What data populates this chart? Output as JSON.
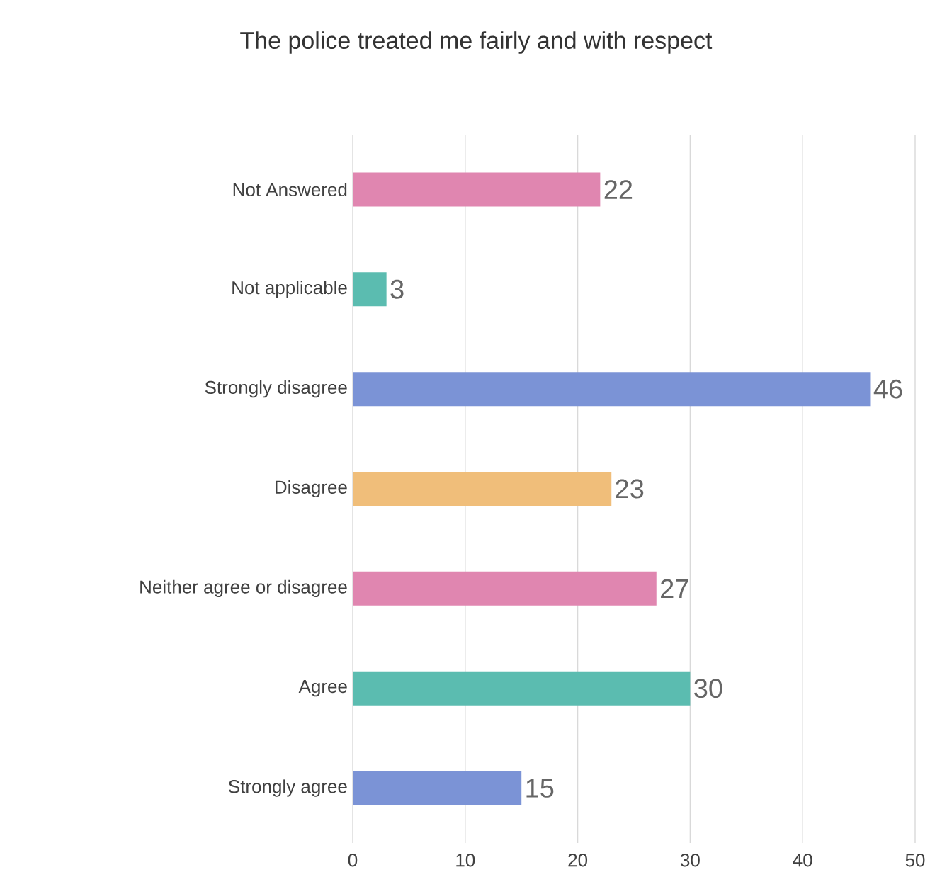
{
  "chart_data": {
    "type": "bar",
    "orientation": "horizontal",
    "title": "The police treated me fairly and with respect",
    "categories": [
      "Not Answered",
      "Not applicable",
      "Strongly disagree",
      "Disagree",
      "Neither agree or disagree",
      "Agree",
      "Strongly agree"
    ],
    "values": [
      22,
      3,
      46,
      23,
      27,
      30,
      15
    ],
    "colors": [
      "#e086b0",
      "#5bbcb0",
      "#7b93d6",
      "#f0be7a",
      "#e086b0",
      "#5bbcb0",
      "#7b93d6"
    ],
    "xlim": [
      0,
      50
    ],
    "xticks": [
      0,
      10,
      20,
      30,
      40,
      50
    ],
    "grid": "x",
    "data_labels": true
  }
}
